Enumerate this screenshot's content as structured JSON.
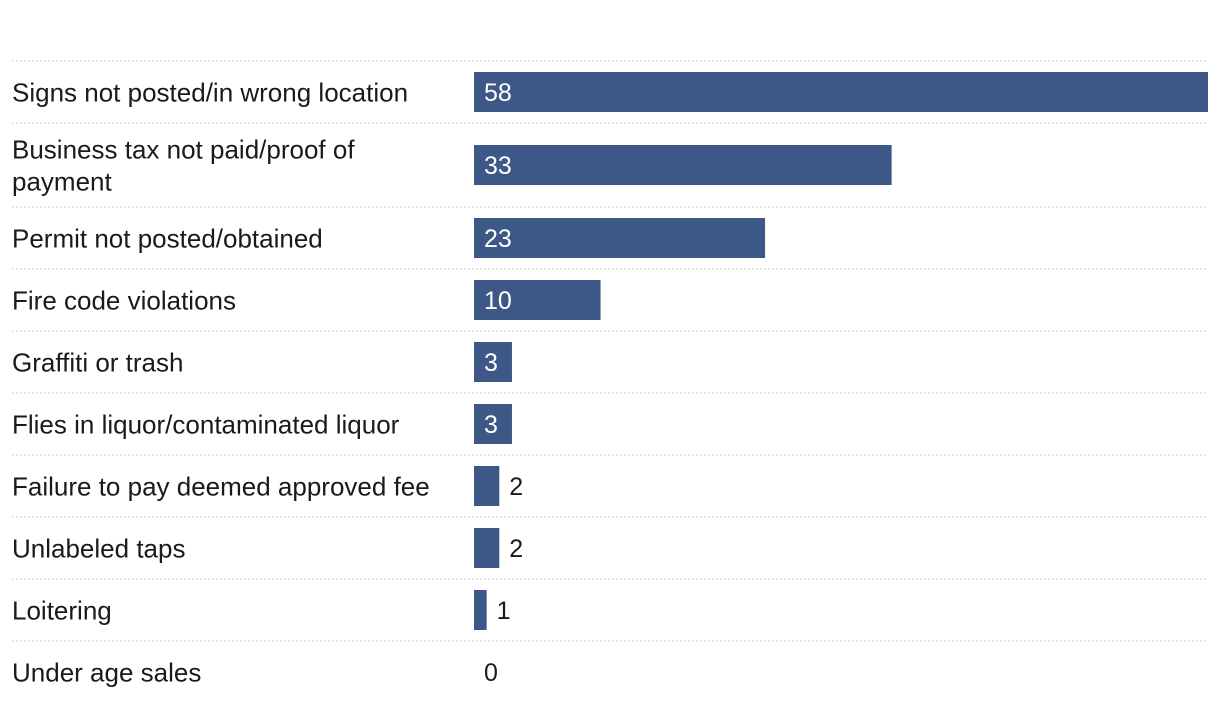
{
  "chart_data": {
    "type": "bar",
    "orientation": "horizontal",
    "title": "",
    "xlabel": "",
    "ylabel": "",
    "categories": [
      "Signs not posted/in wrong location",
      "Business tax not paid/proof of payment",
      "Permit not posted/obtained",
      "Fire code violations",
      "Graffiti or trash",
      "Flies in liquor/contaminated liquor",
      "Failure to pay deemed approved fee",
      "Unlabeled taps",
      "Loitering",
      "Under age sales"
    ],
    "values": [
      58,
      33,
      23,
      10,
      3,
      3,
      2,
      2,
      1,
      0
    ],
    "xlim": [
      0,
      58
    ],
    "grid": false,
    "bar_color": "#3d5886"
  }
}
